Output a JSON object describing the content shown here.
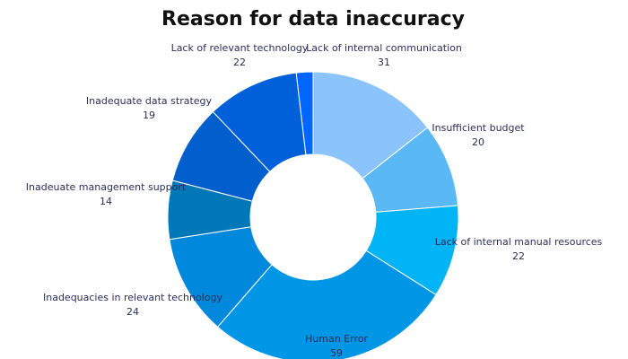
{
  "chart_data": {
    "type": "donut",
    "title": "Reason for data inaccuracy",
    "categories": [
      null,
      "Lack of internal communication",
      "Insufficient budget",
      "Lack of internal manual resources",
      "Human Error",
      "Inadequacies in relevant technology",
      "Inadeuate management support",
      "Inadequate data strategy",
      "Lack of relevant technology"
    ],
    "values": [
      4,
      31,
      20,
      22,
      59,
      24,
      14,
      19,
      22
    ],
    "colors": [
      "#0066ff",
      "#8ac4fb",
      "#5ab8f5",
      "#00b4f5",
      "#0096e6",
      "#0088dd",
      "#0077b6",
      "#005fcc",
      "#0060d9"
    ]
  }
}
